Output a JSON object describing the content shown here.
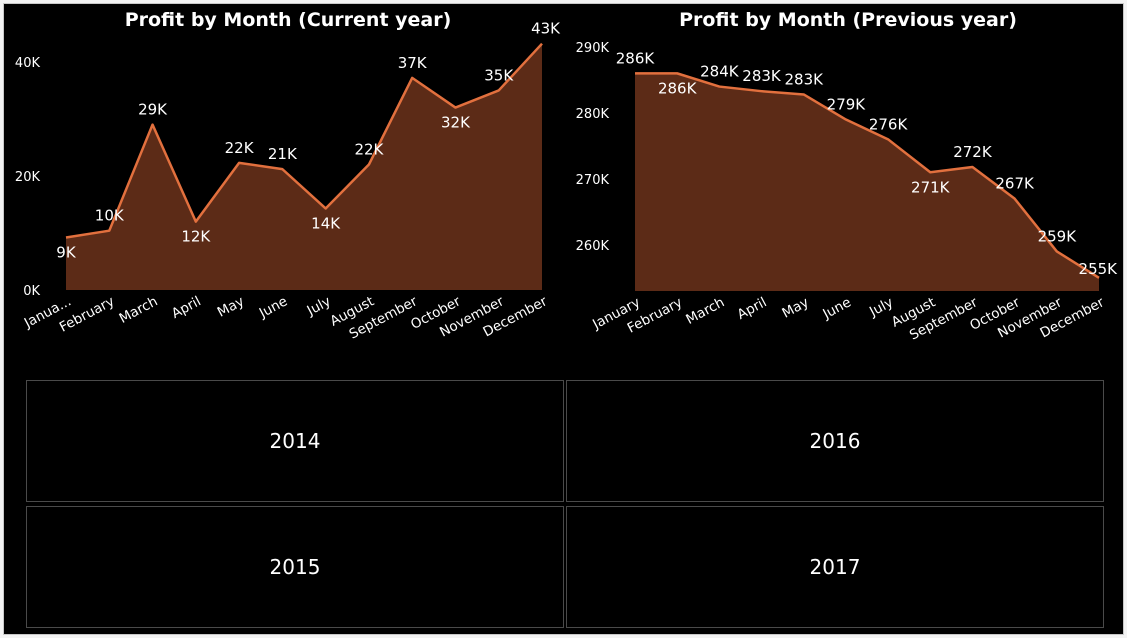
{
  "chart_data": [
    {
      "type": "area",
      "title": "Profit by Month (Current year)",
      "xlabel": "",
      "ylabel": "",
      "categories": [
        "Janua...",
        "February",
        "March",
        "April",
        "May",
        "June",
        "July",
        "August",
        "September",
        "October",
        "November",
        "December"
      ],
      "values": [
        9200,
        10400,
        29000,
        12000,
        22300,
        21200,
        14300,
        22000,
        37200,
        32000,
        35000,
        43200
      ],
      "data_labels": [
        "9K",
        "10K",
        "29K",
        "12K",
        "22K",
        "21K",
        "14K",
        "22K",
        "37K",
        "32K",
        "35K",
        "43K"
      ],
      "yticks": [
        0,
        20000,
        40000
      ],
      "ytick_labels": [
        "0K",
        "20K",
        "40K"
      ],
      "ylim": [
        0,
        47000
      ],
      "grid": false,
      "legend": "none"
    },
    {
      "type": "area",
      "title": "Profit by Month (Previous year)",
      "xlabel": "",
      "ylabel": "",
      "categories": [
        "January",
        "February",
        "March",
        "April",
        "May",
        "June",
        "July",
        "August",
        "September",
        "October",
        "November",
        "December"
      ],
      "values": [
        286000,
        286000,
        284000,
        283300,
        282800,
        279000,
        276000,
        271000,
        271800,
        267000,
        259000,
        255000
      ],
      "data_labels": [
        "286K",
        "286K",
        "284K",
        "283K",
        "283K",
        "279K",
        "276K",
        "271K",
        "272K",
        "267K",
        "259K",
        "255K"
      ],
      "yticks": [
        260000,
        270000,
        280000,
        290000
      ],
      "ytick_labels": [
        "260K",
        "270K",
        "280K",
        "290K"
      ],
      "ylim": [
        253000,
        290000
      ],
      "grid": false,
      "legend": "none"
    }
  ],
  "colors": {
    "background": "#000000",
    "area_fill": "#5c2b17",
    "line": "#e2703e",
    "text": "#ffffff",
    "tile_border": "#4a4a4a"
  },
  "year_tiles": [
    "2014",
    "2015",
    "2016",
    "2017"
  ]
}
